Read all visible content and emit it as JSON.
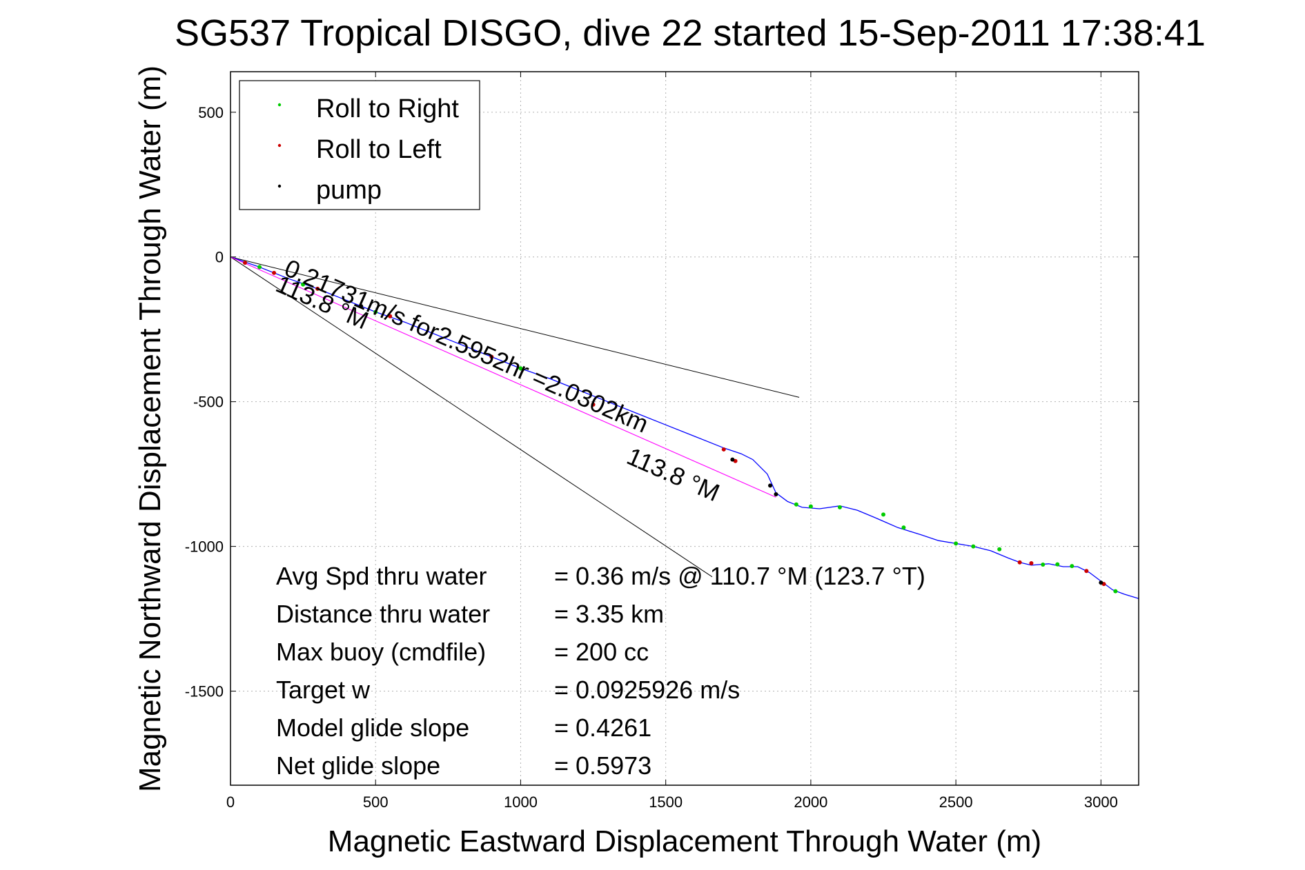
{
  "chart_data": {
    "type": "line",
    "title": "SG537 Tropical DISGO, dive 22 started 15-Sep-2011 17:38:41",
    "xlabel": "Magnetic Eastward Displacement Through Water (m)",
    "ylabel": "Magnetic Northward Displacement Through Water (m)",
    "xlim": [
      0,
      3130
    ],
    "ylim": [
      -1825,
      640
    ],
    "grid": true,
    "x_ticks": [
      0,
      500,
      1000,
      1500,
      2000,
      2500,
      3000
    ],
    "y_ticks": [
      500,
      0,
      -500,
      -1000,
      -1500
    ],
    "legend": {
      "placement": "top-left",
      "entries": [
        {
          "label": "Roll to Right",
          "color": "#00cc00"
        },
        {
          "label": "Roll to Left",
          "color": "#cc0000"
        },
        {
          "label": "pump",
          "color": "#000000"
        }
      ]
    },
    "series": [
      {
        "role": "track",
        "color": "#0000ff",
        "x": [
          0,
          100,
          200,
          300,
          400,
          500,
          600,
          700,
          800,
          900,
          1000,
          1100,
          1200,
          1300,
          1400,
          1500,
          1600,
          1700,
          1760,
          1800,
          1850,
          1880,
          1920,
          1970,
          2030,
          2100,
          2160,
          2220,
          2300,
          2380,
          2440,
          2500,
          2560,
          2620,
          2680,
          2720,
          2760,
          2820,
          2870,
          2920,
          2960,
          3000,
          3040,
          3080,
          3130
        ],
        "y": [
          0,
          -35,
          -75,
          -110,
          -150,
          -190,
          -225,
          -265,
          -305,
          -345,
          -385,
          -420,
          -460,
          -500,
          -540,
          -580,
          -620,
          -660,
          -680,
          -700,
          -750,
          -815,
          -845,
          -865,
          -870,
          -860,
          -875,
          -900,
          -935,
          -960,
          -980,
          -990,
          -1000,
          -1015,
          -1040,
          -1055,
          -1065,
          -1060,
          -1070,
          -1070,
          -1090,
          -1120,
          -1150,
          -1165,
          -1180
        ]
      },
      {
        "role": "vector-fit",
        "color": "#ff00ff",
        "x": [
          0,
          1880
        ],
        "y": [
          0,
          -830
        ]
      },
      {
        "role": "roll-right",
        "color": "#00cc00",
        "x": [
          100,
          250,
          500,
          1000,
          1950,
          2000,
          2100,
          2250,
          2320,
          2500,
          2560,
          2650,
          2800,
          2850,
          2900,
          3050
        ],
        "y": [
          -35,
          -95,
          -190,
          -385,
          -855,
          -862,
          -865,
          -890,
          -935,
          -990,
          -1000,
          -1010,
          -1063,
          -1062,
          -1068,
          -1155
        ]
      },
      {
        "role": "roll-left",
        "color": "#cc0000",
        "x": [
          50,
          150,
          300,
          550,
          900,
          1250,
          1700,
          1740,
          2720,
          2760,
          2950,
          3010
        ],
        "y": [
          -20,
          -55,
          -110,
          -205,
          -345,
          -510,
          -665,
          -705,
          -1055,
          -1058,
          -1085,
          -1130
        ]
      },
      {
        "role": "pump",
        "color": "#000000",
        "x": [
          450,
          1730,
          1860,
          1880,
          3000
        ],
        "y": [
          -170,
          -700,
          -790,
          -820,
          -1125
        ]
      }
    ],
    "reference_lines": [
      {
        "x": [
          0,
          1960
        ],
        "y": [
          0,
          -485
        ]
      },
      {
        "x": [
          0,
          1660
        ],
        "y": [
          0,
          -1105
        ]
      }
    ],
    "annotations": [
      {
        "text": "0.21731m/s for2.5952hr =2.0302km",
        "x": 180,
        "y": -60
      },
      {
        "text": "113.8 °M",
        "x": 150,
        "y": -115
      },
      {
        "text": "113.8 °M",
        "x": 1360,
        "y": -710
      }
    ],
    "stats": [
      {
        "label": "Avg Spd thru water",
        "value": "=  0.36 m/s @ 110.7 °M (123.7 °T)"
      },
      {
        "label": "Distance thru water",
        "value": "=  3.35 km"
      },
      {
        "label": "Max buoy (cmdfile)",
        "value": "= 200 cc"
      },
      {
        "label": "Target w",
        "value": "= 0.0925926 m/s"
      },
      {
        "label": "Model glide slope",
        "value": "= 0.4261"
      },
      {
        "label": "Net glide slope",
        "value": "= 0.5973"
      }
    ]
  }
}
